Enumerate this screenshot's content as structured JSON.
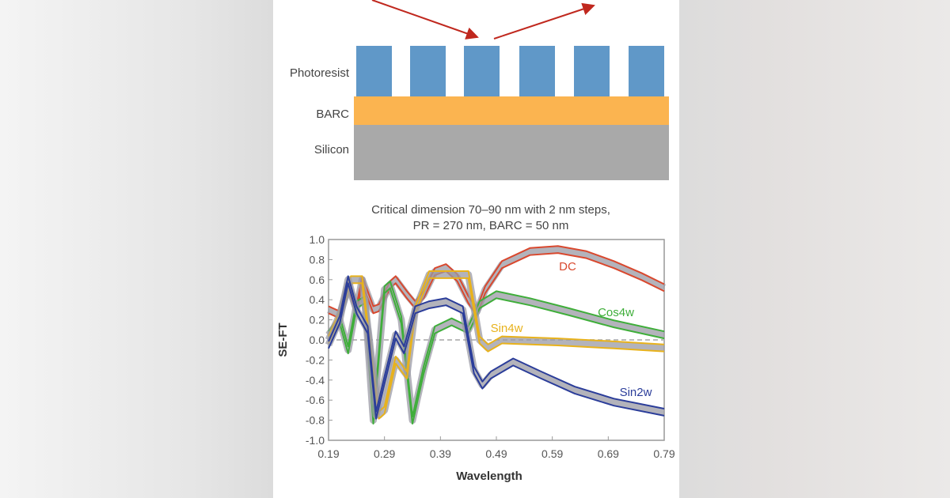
{
  "diagram": {
    "layers": [
      {
        "label": "Photoresist",
        "color": "#6098c8"
      },
      {
        "label": "BARC",
        "color": "#fbb450"
      },
      {
        "label": "Silicon",
        "color": "#a9a9a9"
      }
    ],
    "arrow_color": "#c0281e"
  },
  "chart_data": {
    "type": "line",
    "title": "Critical dimension 70–90 nm with 2 nm steps,",
    "subtitle": "PR = 270 nm, BARC = 50 nm",
    "xlabel": "Wavelength",
    "ylabel": "SE-FT",
    "xlim": [
      0.19,
      0.79
    ],
    "ylim": [
      -1.0,
      1.0
    ],
    "xticks": [
      "0.19",
      "0.29",
      "0.39",
      "0.49",
      "0.59",
      "0.69",
      "0.79"
    ],
    "yticks": [
      "1.0",
      "0.8",
      "0.6",
      "0.4",
      "0.2",
      "0.0",
      "-0.2",
      "-0.4",
      "-0.6",
      "-0.8",
      "-1.0"
    ],
    "zero_line": "dashed",
    "grid": false,
    "series": [
      {
        "name": "DC",
        "color": "#d9482e",
        "x": [
          0.19,
          0.21,
          0.225,
          0.24,
          0.25,
          0.27,
          0.28,
          0.3,
          0.31,
          0.33,
          0.345,
          0.36,
          0.38,
          0.4,
          0.42,
          0.44,
          0.455,
          0.47,
          0.5,
          0.55,
          0.6,
          0.65,
          0.7,
          0.75,
          0.79
        ],
        "y": [
          0.3,
          0.25,
          0.55,
          0.3,
          0.6,
          0.3,
          0.32,
          0.55,
          0.6,
          0.45,
          0.35,
          0.45,
          0.68,
          0.72,
          0.62,
          0.4,
          0.28,
          0.5,
          0.75,
          0.88,
          0.9,
          0.85,
          0.75,
          0.63,
          0.52
        ]
      },
      {
        "name": "Cos4w",
        "color": "#3fae3a",
        "x": [
          0.19,
          0.21,
          0.225,
          0.24,
          0.255,
          0.27,
          0.29,
          0.3,
          0.32,
          0.34,
          0.36,
          0.38,
          0.41,
          0.44,
          0.46,
          0.49,
          0.55,
          0.62,
          0.7,
          0.79
        ],
        "y": [
          0.05,
          0.2,
          -0.1,
          0.35,
          0.4,
          -0.8,
          0.5,
          0.55,
          0.2,
          -0.8,
          -0.3,
          0.1,
          0.18,
          0.1,
          0.35,
          0.45,
          0.38,
          0.28,
          0.16,
          0.05
        ]
      },
      {
        "name": "Sin4w",
        "color": "#e8b21c",
        "x": [
          0.19,
          0.21,
          0.23,
          0.25,
          0.265,
          0.28,
          0.29,
          0.31,
          0.33,
          0.345,
          0.37,
          0.4,
          0.44,
          0.46,
          0.475,
          0.5,
          0.6,
          0.7,
          0.79
        ],
        "y": [
          0.0,
          0.25,
          0.6,
          0.6,
          -0.1,
          -0.75,
          -0.7,
          -0.2,
          -0.35,
          0.3,
          0.65,
          0.65,
          0.65,
          0.0,
          -0.08,
          0.0,
          -0.02,
          -0.05,
          -0.08
        ]
      },
      {
        "name": "Sin2w",
        "color": "#2b3d9a",
        "x": [
          0.19,
          0.21,
          0.225,
          0.24,
          0.26,
          0.275,
          0.29,
          0.31,
          0.325,
          0.345,
          0.37,
          0.4,
          0.43,
          0.45,
          0.465,
          0.48,
          0.52,
          0.57,
          0.63,
          0.7,
          0.79
        ],
        "y": [
          -0.05,
          0.2,
          0.6,
          0.3,
          0.1,
          -0.75,
          -0.4,
          0.05,
          -0.1,
          0.3,
          0.35,
          0.38,
          0.3,
          -0.3,
          -0.45,
          -0.35,
          -0.22,
          -0.35,
          -0.5,
          -0.62,
          -0.72
        ]
      }
    ]
  }
}
